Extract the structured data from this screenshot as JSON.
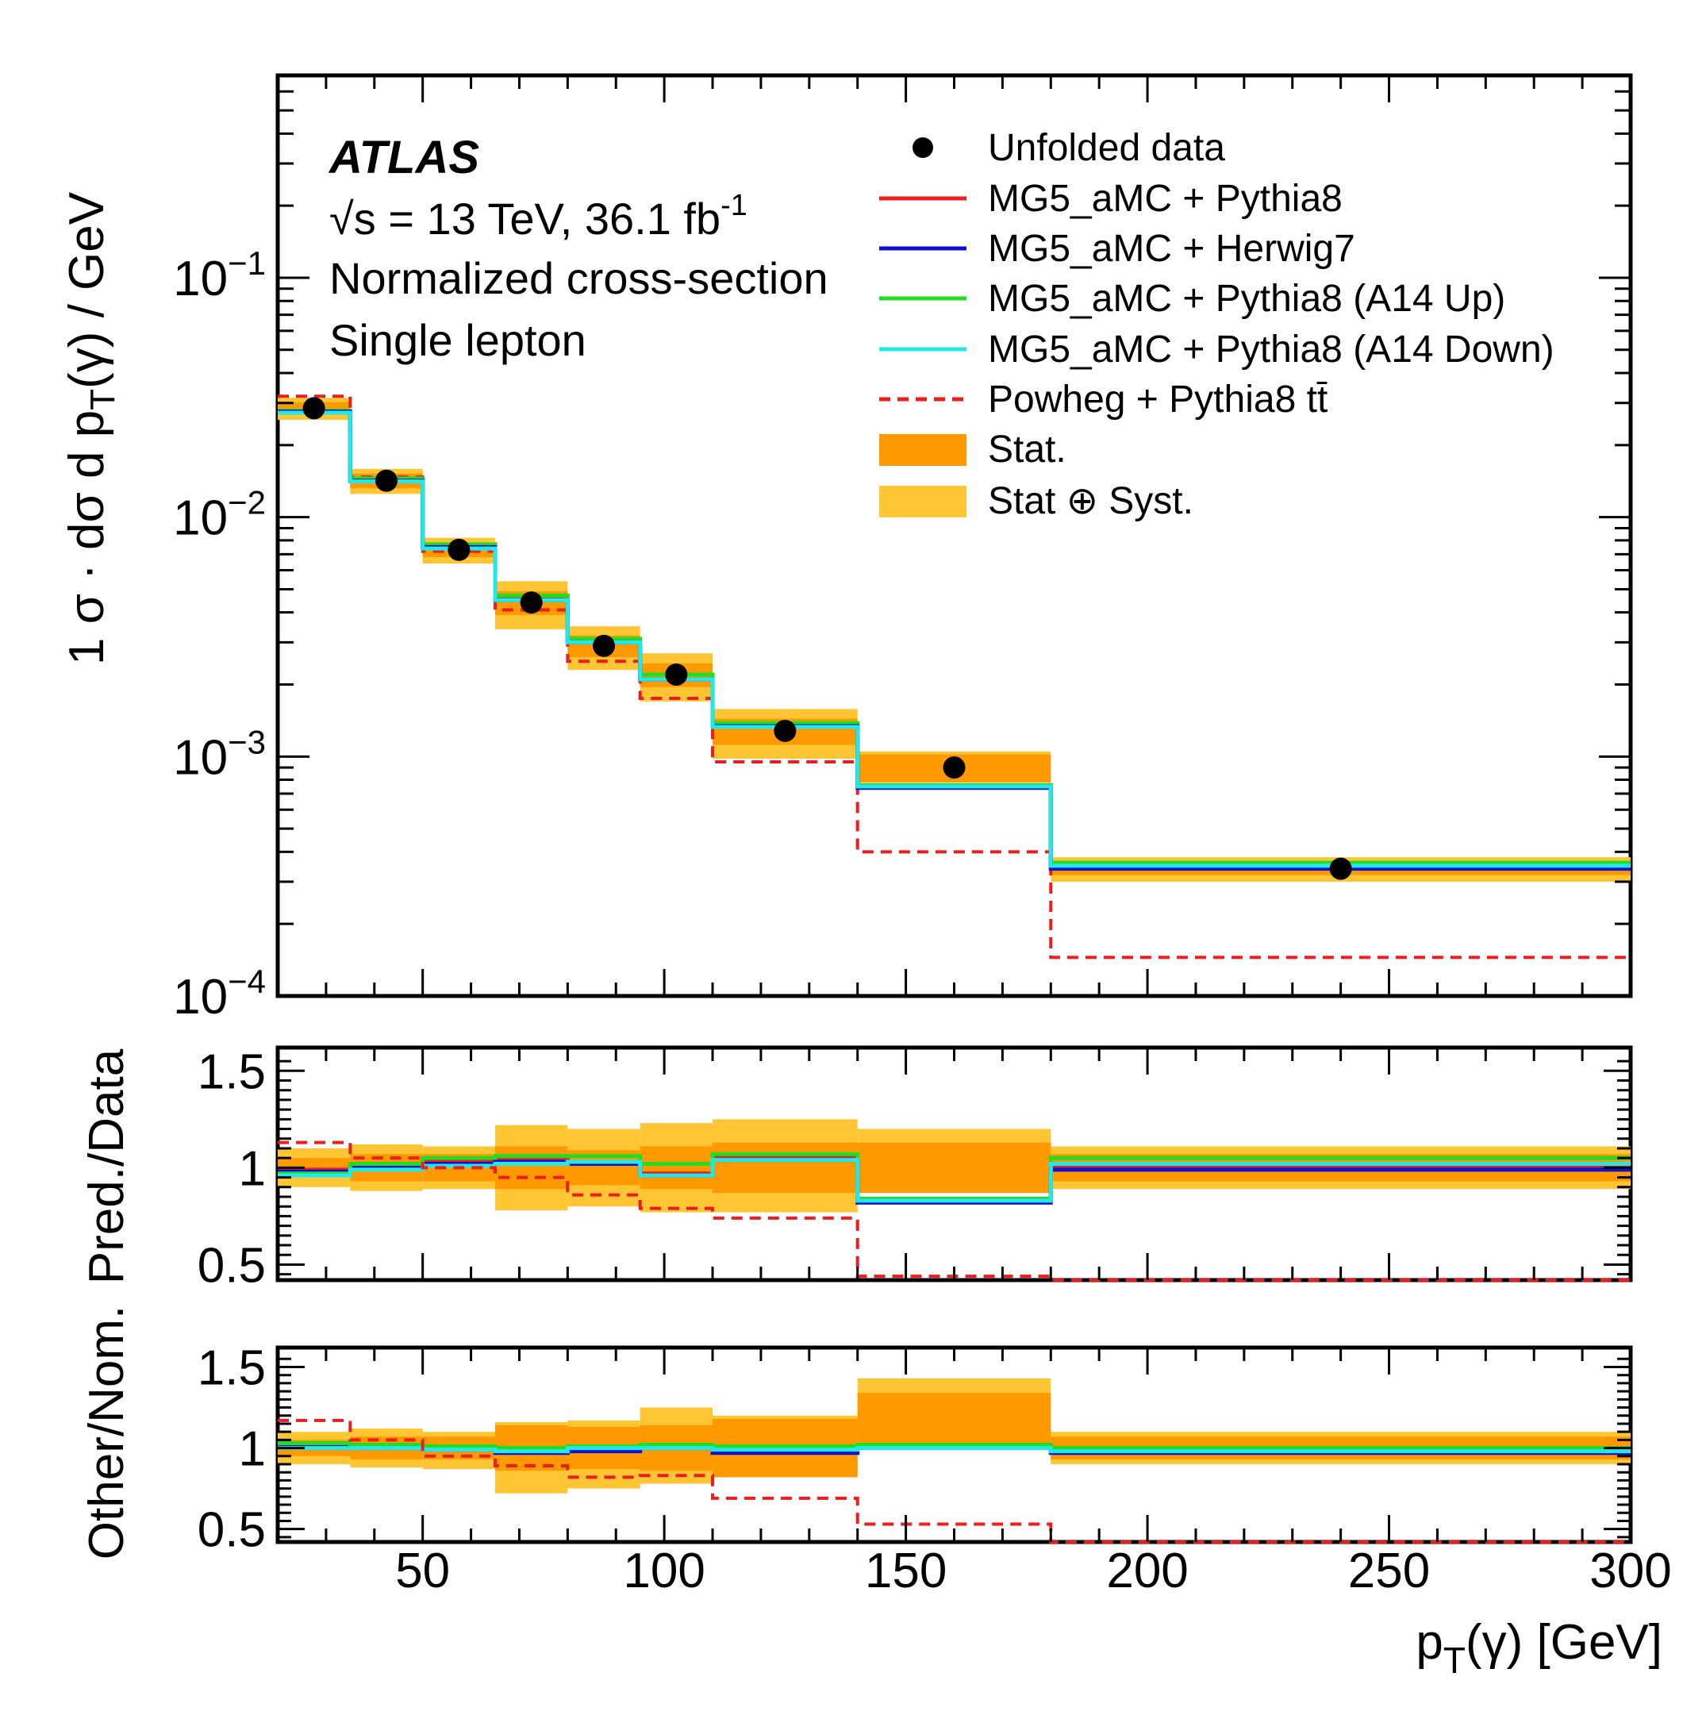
{
  "chart_data": {
    "type": "step-histogram",
    "bin_edges": [
      20,
      35,
      50,
      65,
      80,
      95,
      110,
      140,
      180,
      300
    ],
    "xlim": [
      20,
      300
    ],
    "x_ticks": [
      50,
      100,
      150,
      200,
      250,
      300
    ],
    "xlabel": {
      "main": "p",
      "sub": "T",
      "rest": "(γ) [GeV]"
    },
    "main_panel": {
      "yscale": "log",
      "ylim": [
        0.0001,
        0.7
      ],
      "y_tick_labels": [
        {
          "value": 0.1,
          "base": "10",
          "exp": "−1"
        },
        {
          "value": 0.01,
          "base": "10",
          "exp": "−2"
        },
        {
          "value": 0.001,
          "base": "10",
          "exp": "−3"
        },
        {
          "value": 0.0001,
          "base": "10",
          "exp": "−4"
        }
      ],
      "ylabel": {
        "frac_num": "1",
        "frac_den": "σ",
        "dot": "·",
        "d_num": "dσ",
        "d_den_pre": "d p",
        "d_den_sub": "T",
        "d_den_post": "(γ)",
        "unit": "/ GeV"
      },
      "data": [
        0.0285,
        0.0142,
        0.0073,
        0.0044,
        0.0029,
        0.0022,
        0.00128,
        0.0009,
        0.00034
      ],
      "stat_band": {
        "low": [
          0.0268,
          0.0132,
          0.0068,
          0.0039,
          0.0026,
          0.00195,
          0.00112,
          0.00078,
          0.00032
        ],
        "high": [
          0.0302,
          0.0152,
          0.0078,
          0.0049,
          0.0032,
          0.00245,
          0.00144,
          0.00102,
          0.00036
        ]
      },
      "syst_band": {
        "low": [
          0.0255,
          0.0125,
          0.0064,
          0.0034,
          0.0023,
          0.0017,
          0.00098,
          0.00078,
          0.0003
        ],
        "high": [
          0.0315,
          0.0159,
          0.0082,
          0.0054,
          0.0035,
          0.0027,
          0.00158,
          0.00105,
          0.00038
        ]
      },
      "series": [
        {
          "name": "MG5_aMC + Pythia8",
          "color": "#ee1c1c",
          "values": [
            0.0275,
            0.0143,
            0.0075,
            0.0046,
            0.003,
            0.0021,
            0.00135,
            0.00075,
            0.00035
          ]
        },
        {
          "name": "MG5_aMC + Herwig7",
          "color": "#1010d0",
          "values": [
            0.0276,
            0.0142,
            0.0075,
            0.0045,
            0.003,
            0.0021,
            0.00134,
            0.00074,
            0.00034
          ]
        },
        {
          "name": "MG5_aMC + Pythia8 (A14 Up)",
          "color": "#22dd22",
          "values": [
            0.0278,
            0.0145,
            0.0077,
            0.0047,
            0.0031,
            0.0022,
            0.00138,
            0.00076,
            0.00036
          ]
        },
        {
          "name": "MG5_aMC + Pythia8 (A14 Down)",
          "color": "#22e8e8",
          "values": [
            0.0273,
            0.0141,
            0.0074,
            0.0045,
            0.003,
            0.0021,
            0.00133,
            0.00075,
            0.00035
          ]
        },
        {
          "name": "Powheg + Pythia8 tt̄",
          "color": "#ee1c1c",
          "dashed": true,
          "values": [
            0.032,
            0.0147,
            0.0072,
            0.0041,
            0.0025,
            0.00175,
            0.00095,
            0.0004,
            0.000145
          ]
        }
      ]
    },
    "ratio_panel": {
      "ylabel": "Pred./Data",
      "ylim": [
        0.42,
        1.62
      ],
      "y_ticks": [
        0.5,
        1,
        1.5
      ],
      "y_tick_labels": [
        "0.5",
        "1",
        "1.5"
      ],
      "stat_band": {
        "low": [
          0.95,
          0.93,
          0.93,
          0.89,
          0.91,
          0.89,
          0.87,
          0.87,
          0.93
        ],
        "high": [
          1.05,
          1.07,
          1.07,
          1.11,
          1.09,
          1.11,
          1.13,
          1.13,
          1.07
        ]
      },
      "syst_band": {
        "low": [
          0.9,
          0.88,
          0.89,
          0.78,
          0.8,
          0.77,
          0.77,
          0.87,
          0.89
        ],
        "high": [
          1.1,
          1.12,
          1.11,
          1.22,
          1.2,
          1.23,
          1.25,
          1.2,
          1.11
        ]
      },
      "series": [
        {
          "name": "MG5_aMC + Pythia8",
          "values": [
            0.99,
            1.01,
            1.03,
            1.04,
            1.03,
            0.97,
            1.05,
            0.83,
            1.0
          ]
        },
        {
          "name": "MG5_aMC + Herwig7",
          "values": [
            0.98,
            1.0,
            1.02,
            1.03,
            1.02,
            0.96,
            1.04,
            0.82,
            0.99
          ]
        },
        {
          "name": "MG5_aMC + Pythia8 (A14 Up)",
          "values": [
            0.97,
            1.02,
            1.05,
            1.06,
            1.06,
            1.02,
            1.07,
            0.84,
            1.05
          ]
        },
        {
          "name": "MG5_aMC + Pythia8 (A14 Down)",
          "values": [
            0.96,
            0.99,
            1.01,
            1.02,
            1.03,
            0.96,
            1.04,
            0.83,
            1.02
          ]
        },
        {
          "name": "Powheg + Pythia8 tt̄",
          "values": [
            1.13,
            1.05,
            1.0,
            0.95,
            0.86,
            0.79,
            0.74,
            0.44,
            0.42
          ]
        }
      ]
    },
    "other_panel": {
      "ylabel": "Other/Nom.",
      "ylim": [
        0.42,
        1.62
      ],
      "y_ticks": [
        0.5,
        1,
        1.5
      ],
      "y_tick_labels": [
        "0.5",
        "1",
        "1.5"
      ],
      "stat_band": {
        "low": [
          0.95,
          0.93,
          0.93,
          0.86,
          0.87,
          0.86,
          0.82,
          1.03,
          0.93
        ],
        "high": [
          1.05,
          1.07,
          1.07,
          1.14,
          1.13,
          1.14,
          1.18,
          1.34,
          1.07
        ]
      },
      "syst_band": {
        "low": [
          0.9,
          0.88,
          0.87,
          0.72,
          0.75,
          0.78,
          0.82,
          1.0,
          0.9
        ],
        "high": [
          1.1,
          1.12,
          1.1,
          1.16,
          1.17,
          1.25,
          1.2,
          1.43,
          1.1
        ]
      },
      "series": [
        {
          "name": "MG5_aMC + Herwig7",
          "values": [
            1.02,
            1.0,
            0.99,
            0.97,
            0.98,
            1.0,
            0.97,
            1.01,
            0.97
          ]
        },
        {
          "name": "MG5_aMC + Pythia8 (A14 Up)",
          "values": [
            1.03,
            1.02,
            1.01,
            1.0,
            1.01,
            1.02,
            1.01,
            1.02,
            1.0
          ]
        },
        {
          "name": "MG5_aMC + Pythia8 (A14 Down)",
          "values": [
            1.0,
            1.0,
            0.99,
            0.98,
            1.0,
            1.0,
            0.99,
            1.0,
            0.98
          ]
        },
        {
          "name": "Powheg + Pythia8 tt̄",
          "values": [
            1.17,
            1.05,
            0.95,
            0.89,
            0.82,
            0.83,
            0.69,
            0.53,
            0.42
          ]
        }
      ]
    },
    "annotations": {
      "experiment": "ATLAS",
      "energy": "√s = 13 TeV, 36.1 fb",
      "energy_exp": "-1",
      "measurement": "Normalized cross-section",
      "channel": "Single lepton"
    },
    "legend": {
      "position": "top-right",
      "data_label": "Unfolded data",
      "stat_label": "Stat.",
      "syst_label": "Stat ⊕ Syst."
    },
    "colors": {
      "stat": "#ff9900",
      "syst": "#ffc533",
      "data": "#000000"
    }
  }
}
